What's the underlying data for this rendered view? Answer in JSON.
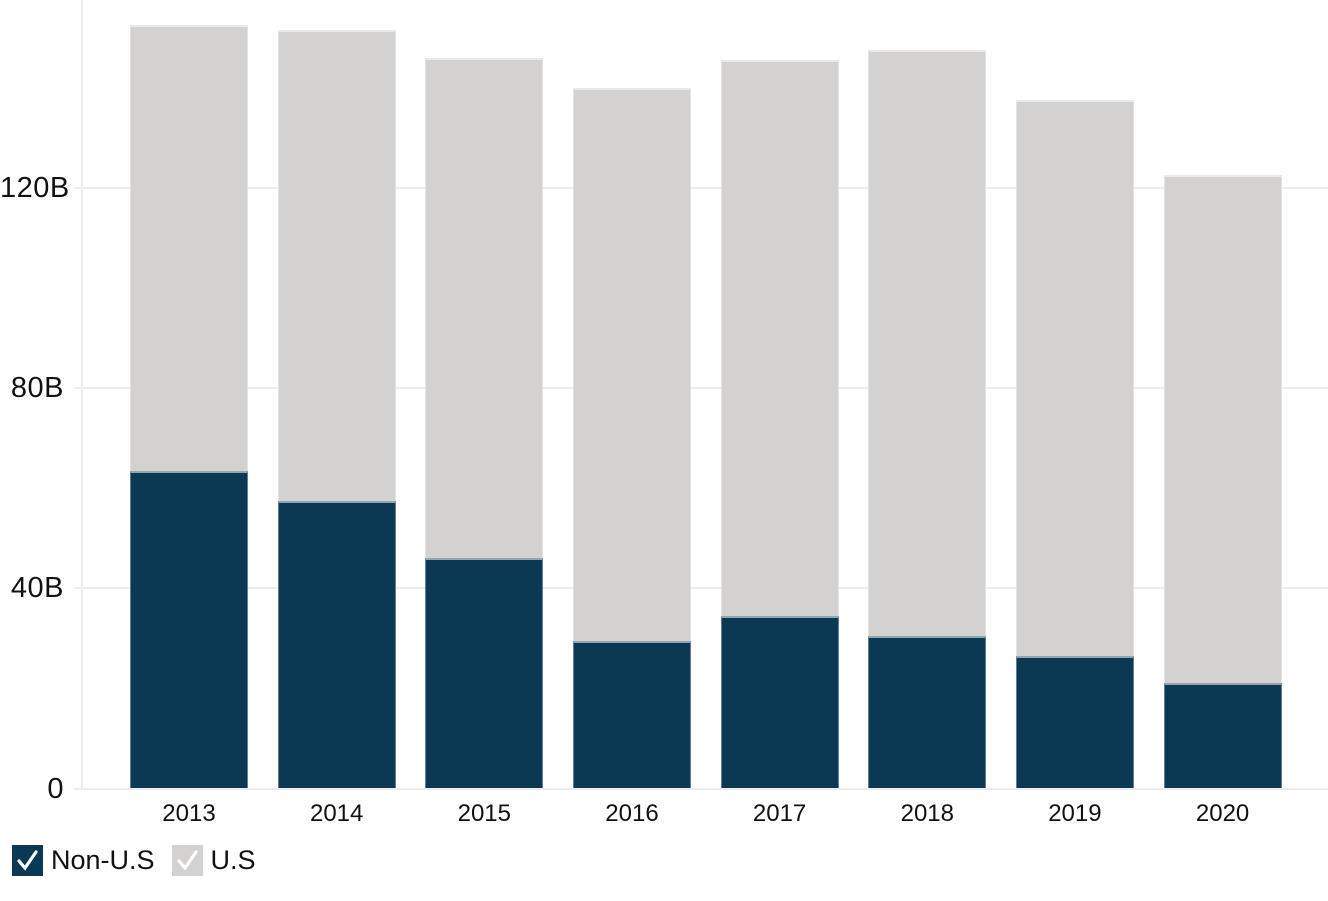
{
  "chart_data": {
    "type": "bar",
    "stacked": true,
    "title": "",
    "xlabel": "",
    "ylabel": "",
    "unit": "B",
    "categories": [
      "2013",
      "2014",
      "2015",
      "2016",
      "2017",
      "2018",
      "2019",
      "2020"
    ],
    "series": [
      {
        "name": "Non-U.S",
        "color": "#0b3954",
        "values": [
          63.5,
          57.5,
          46,
          29.5,
          34.5,
          30.5,
          26.5,
          21
        ]
      },
      {
        "name": "U.S",
        "color": "#d3d2d0",
        "values": [
          89,
          94,
          100,
          110.5,
          111,
          117,
          111,
          101.5
        ]
      }
    ],
    "y_ticks": [
      {
        "value": 0,
        "label": "0"
      },
      {
        "value": 40,
        "label": "40B"
      },
      {
        "value": 80,
        "label": "80B"
      },
      {
        "value": 120,
        "label": "120B"
      }
    ],
    "ylim": [
      0,
      157.5
    ],
    "grid": true,
    "legend_position": "bottom-left"
  },
  "legend": {
    "items": [
      {
        "label": "Non-U.S",
        "checked": true,
        "color": "#0b3954",
        "check_color": "#ffffff"
      },
      {
        "label": "U.S",
        "checked": true,
        "color": "#d3d2d0",
        "check_color": "#ffffff"
      }
    ]
  },
  "colors": {
    "background": "#ffffff",
    "gridline": "#ededed",
    "axis_line": "#ededed",
    "text": "#111111",
    "non_us_bar": "#0b3954",
    "us_bar": "#d3d2d0"
  }
}
